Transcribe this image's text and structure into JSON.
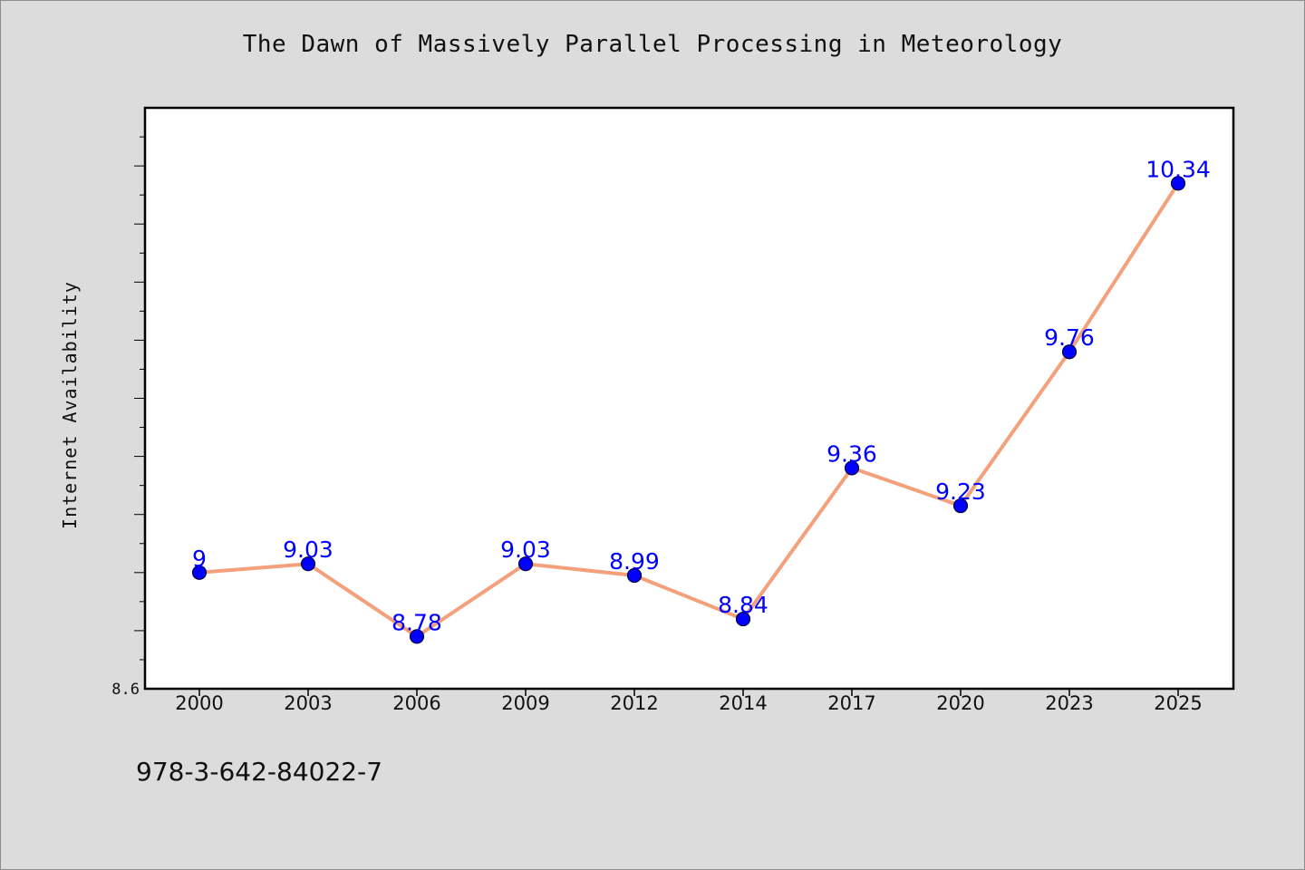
{
  "chart_data": {
    "type": "line",
    "title": "The Dawn of Massively Parallel Processing in Meteorology",
    "xlabel": "",
    "ylabel": "Internet Availability",
    "categories": [
      "2000",
      "2003",
      "2006",
      "2009",
      "2012",
      "2014",
      "2017",
      "2020",
      "2023",
      "2025"
    ],
    "series": [
      {
        "values": [
          9,
          9.03,
          8.78,
          9.03,
          8.99,
          8.84,
          9.36,
          9.23,
          9.76,
          10.34
        ]
      }
    ],
    "data_labels": [
      "9",
      "9.03",
      "8.78",
      "9.03",
      "8.99",
      "8.84",
      "9.36",
      "9.23",
      "9.76",
      "10.34"
    ],
    "ylim": [
      8.6,
      10.6
    ],
    "y_tick_labels": [
      "8.6"
    ],
    "grid": false,
    "legend": "none",
    "colors": {
      "line": "#f4a07a",
      "marker": "#0000ff",
      "marker_edge": "#000033",
      "data_label": "#0000ff",
      "plot_background": "#ffffff",
      "figure_background": "#dcdcdc"
    }
  },
  "footer": {
    "code": "978-3-642-84022-7"
  }
}
